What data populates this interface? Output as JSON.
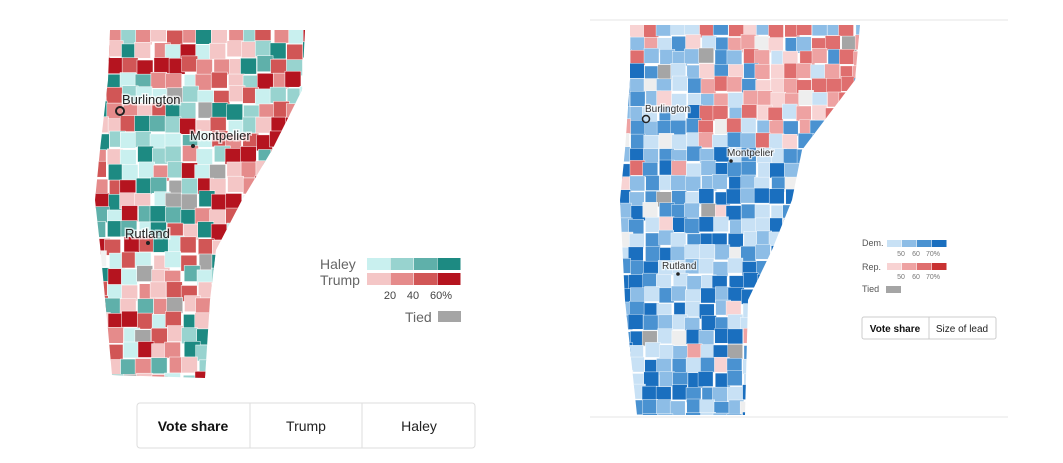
{
  "left_map": {
    "cities": [
      "Burlington",
      "Montpelier",
      "Rutland"
    ],
    "legend": {
      "rows": [
        "Haley",
        "Trump"
      ],
      "scale": [
        "20",
        "40",
        "60%"
      ],
      "tied": "Tied"
    },
    "buttons": [
      "Vote share",
      "Trump",
      "Haley"
    ]
  },
  "right_map": {
    "cities": [
      "Burlington",
      "Montpelier",
      "Rutland"
    ],
    "legend": {
      "rows": [
        "Dem.",
        "Rep."
      ],
      "scale": [
        "50",
        "60",
        "70%"
      ],
      "tied": "Tied"
    },
    "buttons": [
      "Vote share",
      "Size of lead"
    ]
  }
}
